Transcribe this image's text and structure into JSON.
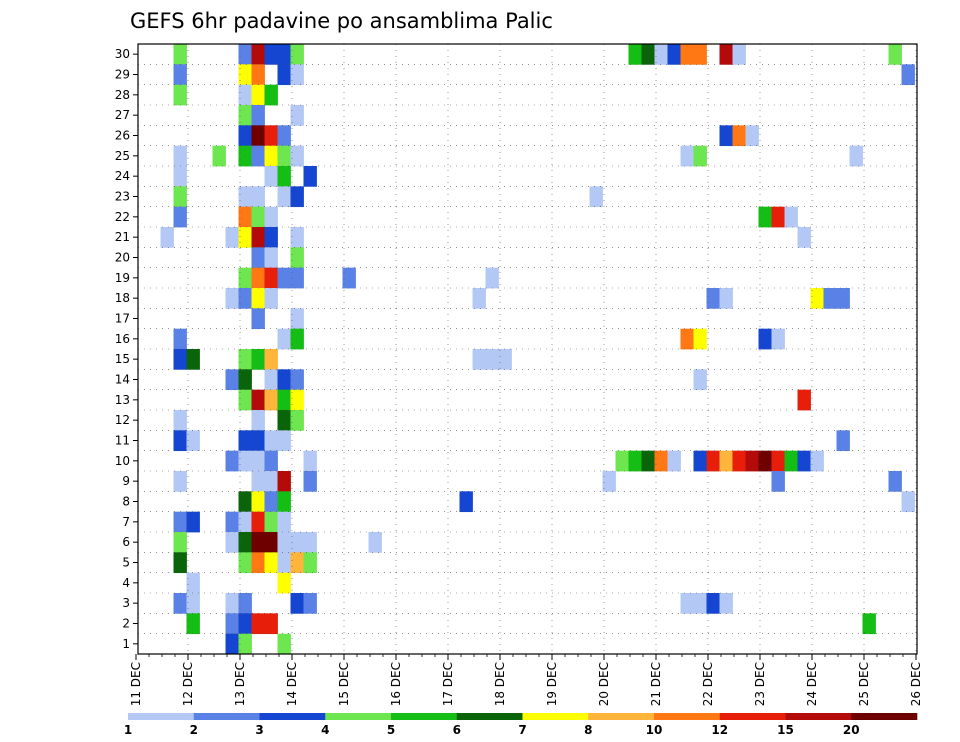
{
  "chart_data": {
    "type": "heatmap",
    "title": "GEFS 6hr padavine po ansamblima Palic",
    "x_tick_labels": [
      "11 DEC",
      "12 DEC",
      "13 DEC",
      "14 DEC",
      "15 DEC",
      "16 DEC",
      "17 DEC",
      "18 DEC",
      "19 DEC",
      "20 DEC",
      "21 DEC",
      "22 DEC",
      "23 DEC",
      "24 DEC",
      "25 DEC",
      "26 DEC"
    ],
    "y_tick_labels": [
      "1",
      "2",
      "3",
      "4",
      "5",
      "6",
      "7",
      "8",
      "9",
      "10",
      "11",
      "12",
      "13",
      "14",
      "15",
      "16",
      "17",
      "18",
      "19",
      "20",
      "21",
      "22",
      "23",
      "24",
      "25",
      "26",
      "27",
      "28",
      "29",
      "30"
    ],
    "x_steps": 60,
    "y_members": 30,
    "grid": true,
    "legend": {
      "placement": "bottom",
      "colors": [
        "#b4c8f5",
        "#5a82e6",
        "#1446d2",
        "#6ee650",
        "#14be14",
        "#0a640a",
        "#ffff00",
        "#ffb43c",
        "#ff7814",
        "#e61e0a",
        "#b40a0a",
        "#6e0000"
      ],
      "labels": [
        "1",
        "2",
        "3",
        "4",
        "5",
        "6",
        "7",
        "8",
        "10",
        "12",
        "15",
        "20"
      ]
    },
    "cells": [
      [
        4,
        30,
        3
      ],
      [
        9,
        30,
        1
      ],
      [
        10,
        30,
        10
      ],
      [
        11,
        30,
        2
      ],
      [
        12,
        30,
        2
      ],
      [
        13,
        30,
        3
      ],
      [
        39,
        30,
        4
      ],
      [
        40,
        30,
        5
      ],
      [
        41,
        30,
        0
      ],
      [
        42,
        30,
        2
      ],
      [
        43,
        30,
        8
      ],
      [
        44,
        30,
        8
      ],
      [
        46,
        30,
        10
      ],
      [
        47,
        30,
        0
      ],
      [
        59,
        30,
        3
      ],
      [
        4,
        29,
        1
      ],
      [
        9,
        29,
        6
      ],
      [
        10,
        29,
        8
      ],
      [
        12,
        29,
        2
      ],
      [
        13,
        29,
        0
      ],
      [
        60,
        29,
        1
      ],
      [
        4,
        28,
        3
      ],
      [
        9,
        28,
        0
      ],
      [
        10,
        28,
        6
      ],
      [
        11,
        28,
        4
      ],
      [
        9,
        27,
        3
      ],
      [
        10,
        27,
        1
      ],
      [
        13,
        27,
        0
      ],
      [
        9,
        26,
        2
      ],
      [
        10,
        26,
        11
      ],
      [
        11,
        26,
        9
      ],
      [
        12,
        26,
        1
      ],
      [
        46,
        26,
        2
      ],
      [
        47,
        26,
        8
      ],
      [
        48,
        26,
        0
      ],
      [
        4,
        25,
        0
      ],
      [
        7,
        25,
        3
      ],
      [
        9,
        25,
        4
      ],
      [
        10,
        25,
        1
      ],
      [
        11,
        25,
        6
      ],
      [
        12,
        25,
        3
      ],
      [
        13,
        25,
        0
      ],
      [
        43,
        25,
        0
      ],
      [
        44,
        25,
        3
      ],
      [
        56,
        25,
        0
      ],
      [
        4,
        24,
        0
      ],
      [
        11,
        24,
        0
      ],
      [
        12,
        24,
        4
      ],
      [
        14,
        24,
        2
      ],
      [
        4,
        23,
        3
      ],
      [
        9,
        23,
        0
      ],
      [
        10,
        23,
        0
      ],
      [
        12,
        23,
        0
      ],
      [
        13,
        23,
        2
      ],
      [
        36,
        23,
        0
      ],
      [
        4,
        22,
        1
      ],
      [
        9,
        22,
        8
      ],
      [
        10,
        22,
        3
      ],
      [
        11,
        22,
        0
      ],
      [
        49,
        22,
        4
      ],
      [
        50,
        22,
        9
      ],
      [
        51,
        22,
        0
      ],
      [
        3,
        21,
        0
      ],
      [
        8,
        21,
        0
      ],
      [
        9,
        21,
        6
      ],
      [
        10,
        21,
        10
      ],
      [
        11,
        21,
        2
      ],
      [
        13,
        21,
        0
      ],
      [
        52,
        21,
        0
      ],
      [
        10,
        20,
        1
      ],
      [
        11,
        20,
        0
      ],
      [
        13,
        20,
        3
      ],
      [
        9,
        19,
        3
      ],
      [
        10,
        19,
        8
      ],
      [
        11,
        19,
        9
      ],
      [
        12,
        19,
        1
      ],
      [
        13,
        19,
        1
      ],
      [
        17,
        19,
        1
      ],
      [
        28,
        19,
        0
      ],
      [
        8,
        18,
        0
      ],
      [
        9,
        18,
        1
      ],
      [
        10,
        18,
        6
      ],
      [
        11,
        18,
        0
      ],
      [
        27,
        18,
        0
      ],
      [
        45,
        18,
        1
      ],
      [
        46,
        18,
        0
      ],
      [
        53,
        18,
        6
      ],
      [
        54,
        18,
        1
      ],
      [
        55,
        18,
        1
      ],
      [
        10,
        17,
        1
      ],
      [
        13,
        17,
        0
      ],
      [
        4,
        16,
        1
      ],
      [
        12,
        16,
        0
      ],
      [
        13,
        16,
        4
      ],
      [
        43,
        16,
        8
      ],
      [
        44,
        16,
        6
      ],
      [
        49,
        16,
        2
      ],
      [
        50,
        16,
        0
      ],
      [
        4,
        15,
        2
      ],
      [
        5,
        15,
        5
      ],
      [
        9,
        15,
        3
      ],
      [
        10,
        15,
        4
      ],
      [
        11,
        15,
        7
      ],
      [
        27,
        15,
        0
      ],
      [
        28,
        15,
        0
      ],
      [
        29,
        15,
        0
      ],
      [
        8,
        14,
        1
      ],
      [
        9,
        14,
        5
      ],
      [
        11,
        14,
        0
      ],
      [
        12,
        14,
        2
      ],
      [
        13,
        14,
        1
      ],
      [
        44,
        14,
        0
      ],
      [
        9,
        13,
        3
      ],
      [
        10,
        13,
        10
      ],
      [
        11,
        13,
        7
      ],
      [
        12,
        13,
        4
      ],
      [
        13,
        13,
        6
      ],
      [
        52,
        13,
        9
      ],
      [
        4,
        12,
        0
      ],
      [
        10,
        12,
        0
      ],
      [
        12,
        12,
        5
      ],
      [
        13,
        12,
        3
      ],
      [
        4,
        11,
        2
      ],
      [
        5,
        11,
        0
      ],
      [
        9,
        11,
        2
      ],
      [
        10,
        11,
        2
      ],
      [
        11,
        11,
        0
      ],
      [
        12,
        11,
        0
      ],
      [
        55,
        11,
        1
      ],
      [
        8,
        10,
        1
      ],
      [
        9,
        10,
        0
      ],
      [
        10,
        10,
        0
      ],
      [
        11,
        10,
        1
      ],
      [
        14,
        10,
        0
      ],
      [
        38,
        10,
        3
      ],
      [
        39,
        10,
        4
      ],
      [
        40,
        10,
        5
      ],
      [
        41,
        10,
        8
      ],
      [
        42,
        10,
        0
      ],
      [
        44,
        10,
        2
      ],
      [
        45,
        10,
        9
      ],
      [
        46,
        10,
        7
      ],
      [
        47,
        10,
        9
      ],
      [
        48,
        10,
        10
      ],
      [
        49,
        10,
        11
      ],
      [
        50,
        10,
        9
      ],
      [
        51,
        10,
        4
      ],
      [
        52,
        10,
        2
      ],
      [
        53,
        10,
        0
      ],
      [
        4,
        9,
        0
      ],
      [
        10,
        9,
        0
      ],
      [
        11,
        9,
        0
      ],
      [
        12,
        9,
        10
      ],
      [
        14,
        9,
        1
      ],
      [
        37,
        9,
        0
      ],
      [
        50,
        9,
        1
      ],
      [
        59,
        9,
        1
      ],
      [
        9,
        8,
        5
      ],
      [
        10,
        8,
        6
      ],
      [
        11,
        8,
        1
      ],
      [
        12,
        8,
        4
      ],
      [
        26,
        8,
        2
      ],
      [
        60,
        8,
        0
      ],
      [
        4,
        7,
        1
      ],
      [
        5,
        7,
        2
      ],
      [
        8,
        7,
        1
      ],
      [
        9,
        7,
        0
      ],
      [
        10,
        7,
        9
      ],
      [
        11,
        7,
        3
      ],
      [
        12,
        7,
        0
      ],
      [
        4,
        6,
        3
      ],
      [
        8,
        6,
        0
      ],
      [
        9,
        6,
        5
      ],
      [
        10,
        6,
        11
      ],
      [
        11,
        6,
        11
      ],
      [
        12,
        6,
        0
      ],
      [
        13,
        6,
        0
      ],
      [
        14,
        6,
        0
      ],
      [
        19,
        6,
        0
      ],
      [
        4,
        5,
        5
      ],
      [
        9,
        5,
        3
      ],
      [
        10,
        5,
        8
      ],
      [
        11,
        5,
        6
      ],
      [
        12,
        5,
        0
      ],
      [
        13,
        5,
        7
      ],
      [
        14,
        5,
        3
      ],
      [
        5,
        4,
        0
      ],
      [
        12,
        4,
        6
      ],
      [
        4,
        3,
        1
      ],
      [
        5,
        3,
        0
      ],
      [
        8,
        3,
        0
      ],
      [
        9,
        3,
        1
      ],
      [
        13,
        3,
        2
      ],
      [
        14,
        3,
        1
      ],
      [
        43,
        3,
        0
      ],
      [
        44,
        3,
        0
      ],
      [
        45,
        3,
        2
      ],
      [
        46,
        3,
        0
      ],
      [
        5,
        2,
        4
      ],
      [
        8,
        2,
        1
      ],
      [
        9,
        2,
        2
      ],
      [
        10,
        2,
        9
      ],
      [
        11,
        2,
        9
      ],
      [
        57,
        2,
        4
      ],
      [
        8,
        1,
        2
      ],
      [
        9,
        1,
        3
      ],
      [
        12,
        1,
        3
      ]
    ]
  }
}
